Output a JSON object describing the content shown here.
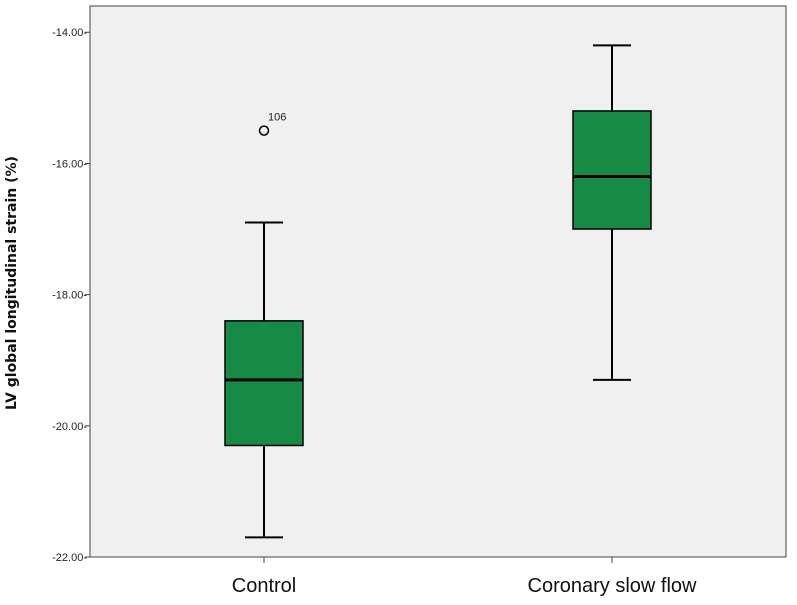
{
  "chart_data": {
    "type": "boxplot",
    "ylabel": "LV global longitudinal strain (%)",
    "ylim": [
      -22.0,
      -13.6
    ],
    "yticks": [
      -14.0,
      -16.0,
      -18.0,
      -20.0,
      -22.0
    ],
    "ytick_labels": [
      "-14.00-",
      "-16.00-",
      "-18.00-",
      "-20.00-",
      "-22.00-"
    ],
    "categories": [
      "Control",
      "Coronary slow flow"
    ],
    "boxes": [
      {
        "category": "Control",
        "whisker_low": -21.7,
        "q1": -20.3,
        "median": -19.3,
        "q3": -18.4,
        "whisker_high": -16.9,
        "outliers": [
          {
            "value": -15.5,
            "label": "106"
          }
        ]
      },
      {
        "category": "Coronary slow flow",
        "whisker_low": -19.3,
        "q1": -17.0,
        "median": -16.2,
        "q3": -15.2,
        "whisker_high": -14.2,
        "outliers": []
      }
    ],
    "box_color": "#178a45",
    "plot_background": "#f0f0f0",
    "grid": false
  }
}
